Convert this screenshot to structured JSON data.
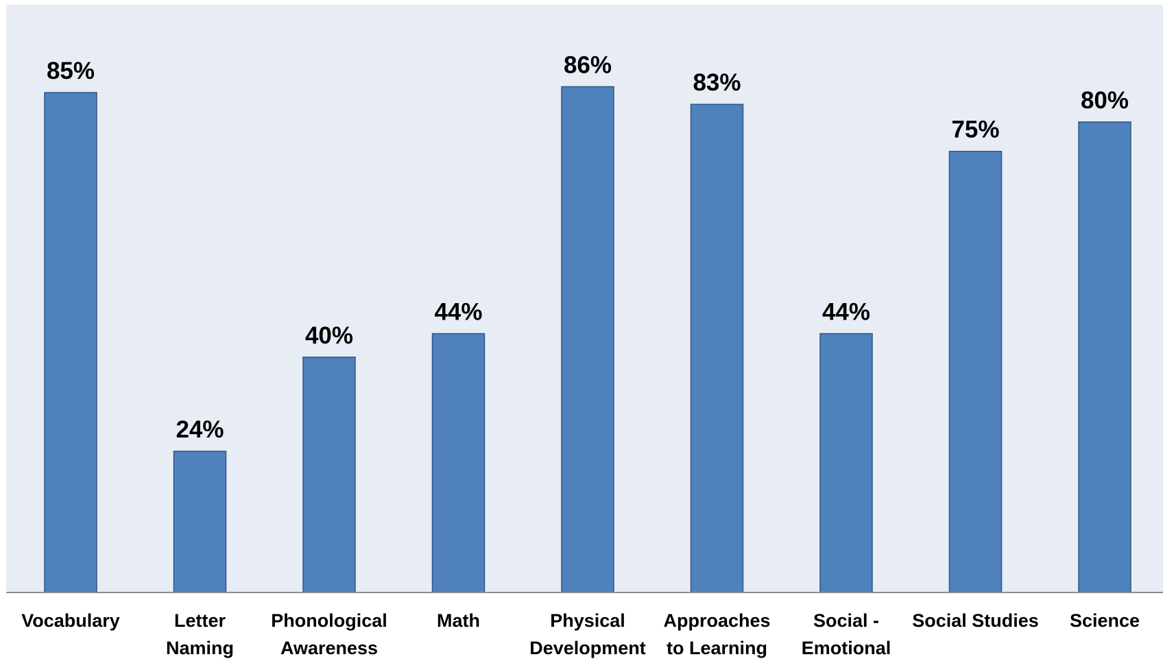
{
  "chart_data": {
    "type": "bar",
    "categories": [
      "Vocabulary",
      "Letter Naming",
      "Phonological Awareness",
      "Math",
      "Physical Development",
      "Approaches to Learning",
      "Social - Emotional",
      "Social Studies",
      "Science"
    ],
    "category_lines": [
      [
        "Vocabulary"
      ],
      [
        "Letter",
        "Naming"
      ],
      [
        "Phonological",
        "Awareness"
      ],
      [
        "Math"
      ],
      [
        "Physical",
        "Development"
      ],
      [
        "Approaches",
        "to Learning"
      ],
      [
        "Social -",
        "Emotional"
      ],
      [
        "Social Studies"
      ],
      [
        "Science"
      ]
    ],
    "values": [
      85,
      24,
      40,
      44,
      86,
      83,
      44,
      75,
      80
    ],
    "value_labels": [
      "85%",
      "24%",
      "40%",
      "44%",
      "86%",
      "83%",
      "44%",
      "75%",
      "80%"
    ],
    "title": "",
    "xlabel": "",
    "ylabel": "",
    "ylim": [
      0,
      100
    ],
    "grid": false,
    "legend": "none",
    "colors": {
      "plot_background": "#e8ecf4",
      "bar_fill": "#4f81bd",
      "bar_stroke": "#2f5687",
      "axis_line": "#8c8c8c"
    }
  }
}
